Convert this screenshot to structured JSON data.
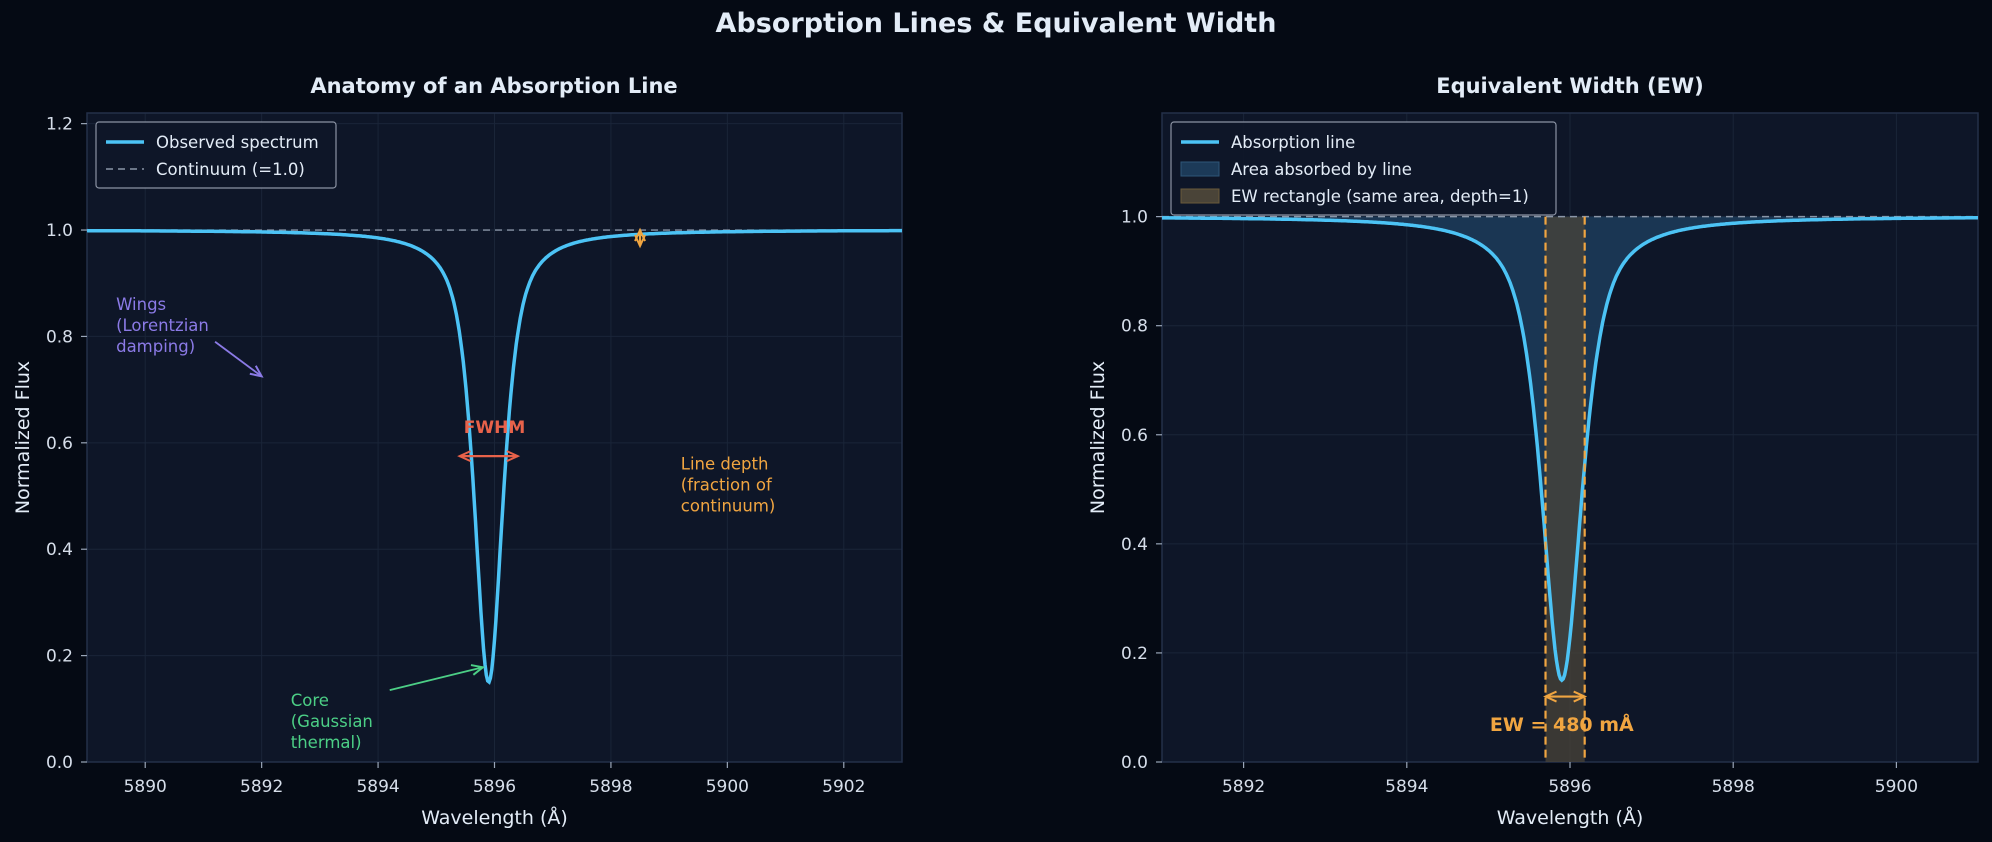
{
  "figure": {
    "title": "Absorption Lines & Equivalent Width",
    "background": "#050a14",
    "panel_background": "#0e1628",
    "colors": {
      "spectrum": "#4cc3f5",
      "continuum": "#8a96a8",
      "fwhm": "#e8624a",
      "depth": "#f0a541",
      "wings": "#8b7ae6",
      "core": "#4ccf86",
      "area_fill": "#1c3a58",
      "ew_fill": "#4a4438",
      "text": "#e3ecf7",
      "axis_text": "#d6deea"
    }
  },
  "chart_data": [
    {
      "type": "line",
      "title": "Anatomy of an Absorption Line",
      "xlabel": "Wavelength (Å)",
      "ylabel": "Normalized Flux",
      "xlim": [
        5889,
        5903
      ],
      "ylim": [
        0,
        1.22
      ],
      "xticks": [
        5890,
        5892,
        5894,
        5896,
        5898,
        5900,
        5902
      ],
      "yticks": [
        0.0,
        0.2,
        0.4,
        0.6,
        0.8,
        1.0,
        1.2
      ],
      "xtick_labels": [
        "5890",
        "5892",
        "5894",
        "5896",
        "5898",
        "5900",
        "5902"
      ],
      "ytick_labels": [
        "0.0",
        "0.2",
        "0.4",
        "0.6",
        "0.8",
        "1.0",
        "1.2"
      ],
      "grid": true,
      "legend_position": "top-left",
      "line_profile": {
        "center": 5895.9,
        "depth": 0.85,
        "gauss_sigma": 0.25,
        "lorentz_gamma": 0.3,
        "lorentz_weight": 0.72
      },
      "series": [
        {
          "name": "Observed spectrum",
          "style": "solid",
          "color": "#4cc3f5"
        },
        {
          "name": "Continuum (=1.0)",
          "style": "dashed",
          "color": "#8a96a8",
          "value": 1.0
        }
      ],
      "annotations": {
        "fwhm": {
          "label": "FWHM",
          "label_x": 5896.0,
          "label_y": 0.63,
          "x_start": 5895.4,
          "x_end": 5896.4,
          "y": 0.575
        },
        "depth": {
          "label": "Line depth\n(fraction of\ncontinuum)",
          "label_x": 5899.2,
          "label_y": 0.52,
          "marker_x": 5898.5,
          "y_top": 1.0,
          "y_bottom": 0.97
        },
        "wings": {
          "label": "Wings\n(Lorentzian\ndamping)",
          "label_x": 5889.5,
          "label_y": 0.85,
          "arrow_from": [
            5891.2,
            0.79
          ],
          "arrow_to": [
            5892.0,
            0.725
          ]
        },
        "core": {
          "label": "Core\n(Gaussian\nthermal)",
          "label_x": 5892.5,
          "label_y": 0.105,
          "arrow_from": [
            5894.2,
            0.135
          ],
          "arrow_to": [
            5895.8,
            0.178
          ]
        }
      }
    },
    {
      "type": "area",
      "title": "Equivalent Width (EW)",
      "xlabel": "Wavelength (Å)",
      "ylabel": "Normalized Flux",
      "xlim": [
        5891,
        5901
      ],
      "ylim": [
        0,
        1.19
      ],
      "xticks": [
        5892,
        5894,
        5896,
        5898,
        5900
      ],
      "yticks": [
        0.0,
        0.2,
        0.4,
        0.6,
        0.8,
        1.0
      ],
      "xtick_labels": [
        "5892",
        "5894",
        "5896",
        "5898",
        "5900"
      ],
      "ytick_labels": [
        "0.0",
        "0.2",
        "0.4",
        "0.6",
        "0.8",
        "1.0"
      ],
      "grid": true,
      "legend_position": "top-left",
      "line_profile": {
        "center": 5895.9,
        "depth": 0.85,
        "gauss_sigma": 0.25,
        "lorentz_gamma": 0.3,
        "lorentz_weight": 0.72
      },
      "series": [
        {
          "name": "Absorption line",
          "style": "solid",
          "color": "#4cc3f5"
        },
        {
          "name": "Area absorbed by line",
          "style": "fill",
          "color": "#1c3a58"
        },
        {
          "name": "EW rectangle (same area, depth=1)",
          "style": "fill",
          "color": "#4a4438"
        }
      ],
      "continuum": 1.0,
      "ew": {
        "x_start": 5895.7,
        "x_end": 5896.18,
        "value_mA": 480,
        "label": "EW = 480 mÅ",
        "label_x": 5895.9,
        "label_y": 0.07,
        "arrow_y": 0.12
      }
    }
  ]
}
